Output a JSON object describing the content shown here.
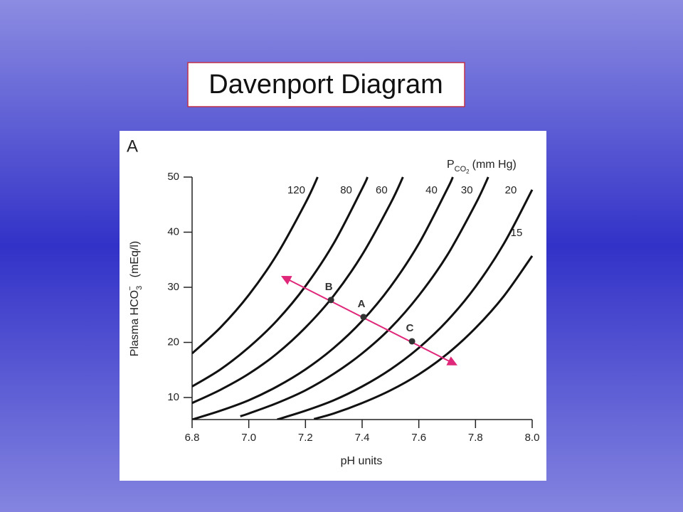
{
  "title": "Davenport Diagram",
  "chart_data": {
    "type": "line",
    "panel_label": "A",
    "xlabel": "pH units",
    "ylabel": [
      "Plasma HCO",
      "3",
      "−",
      "(mEq/l)"
    ],
    "legend_title": [
      "P",
      "CO",
      "2",
      "(mm Hg)"
    ],
    "xlim": [
      6.8,
      8.0
    ],
    "ylim": [
      6,
      50
    ],
    "xticks": [
      6.8,
      {
        "value": 7.0,
        "label": "7.0"
      },
      7.2,
      7.4,
      7.6,
      7.8,
      {
        "value": 8.0,
        "label": "8.0"
      }
    ],
    "yticks": [
      10,
      20,
      30,
      40,
      50
    ],
    "series": [
      {
        "name": "120",
        "color": "#111111",
        "x": [
          6.8,
          6.9,
          7.0,
          7.1,
          7.2,
          7.243
        ],
        "values": [
          18.0,
          22.7,
          28.6,
          36.0,
          45.3,
          50
        ]
      },
      {
        "name": "80",
        "color": "#111111",
        "x": [
          6.8,
          6.9,
          7.0,
          7.1,
          7.2,
          7.3,
          7.4,
          7.419
        ],
        "values": [
          12.0,
          15.1,
          19.1,
          24.0,
          30.2,
          38.0,
          47.9,
          50
        ]
      },
      {
        "name": "60",
        "color": "#111111",
        "x": [
          6.8,
          6.9,
          7.0,
          7.1,
          7.2,
          7.3,
          7.4,
          7.5,
          7.544
        ],
        "values": [
          9.0,
          11.4,
          14.3,
          18.0,
          22.7,
          28.5,
          35.9,
          45.2,
          50
        ]
      },
      {
        "name": "40",
        "color": "#111111",
        "x": [
          6.8,
          6.9,
          7.0,
          7.1,
          7.2,
          7.3,
          7.4,
          7.5,
          7.6,
          7.7,
          7.72
        ],
        "values": [
          6.0,
          7.6,
          9.5,
          12.0,
          15.1,
          19.0,
          23.9,
          30.1,
          37.9,
          47.8,
          50
        ]
      },
      {
        "name": "30",
        "color": "#111111",
        "x": [
          6.97,
          7.0,
          7.1,
          7.2,
          7.3,
          7.4,
          7.5,
          7.6,
          7.7,
          7.8,
          7.845
        ],
        "values": [
          6.6,
          7.1,
          9.0,
          11.3,
          14.3,
          18.0,
          22.6,
          28.5,
          35.8,
          45.1,
          50
        ]
      },
      {
        "name": "20",
        "color": "#111111",
        "x": [
          7.1,
          7.2,
          7.3,
          7.4,
          7.5,
          7.6,
          7.7,
          7.8,
          7.9,
          8.0
        ],
        "values": [
          6.0,
          7.6,
          9.5,
          12.0,
          15.1,
          19.0,
          23.9,
          30.1,
          37.9,
          47.7
        ]
      },
      {
        "name": "15",
        "color": "#111111",
        "x": [
          7.23,
          7.3,
          7.4,
          7.5,
          7.6,
          7.7,
          7.8,
          7.9,
          8.0
        ],
        "values": [
          6.1,
          7.1,
          9.0,
          11.3,
          14.2,
          17.9,
          22.6,
          28.4,
          35.7
        ]
      }
    ],
    "points": {
      "labels": [
        "B",
        "A",
        "C"
      ],
      "x": [
        7.29,
        7.405,
        7.576
      ],
      "values": [
        27.7,
        24.6,
        20.2
      ],
      "color": "#333333"
    },
    "arrow": {
      "x": [
        7.12,
        7.73
      ],
      "values": [
        31.9,
        16.0
      ],
      "color": "#e0287a"
    }
  }
}
